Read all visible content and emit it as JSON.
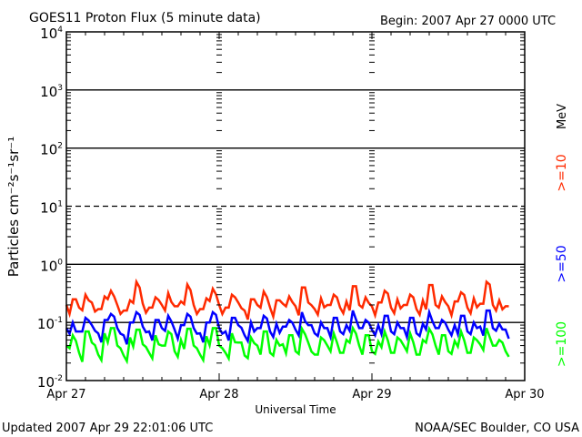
{
  "chart_data": {
    "type": "line",
    "title": "GOES11 Proton Flux (5 minute data)",
    "subtitle": "Begin: 2007 Apr 27 0000 UTC",
    "xlabel": "Universal Time",
    "ylabel": "Particles cm⁻²s⁻¹sr⁻¹",
    "x_ticks": [
      "Apr 27",
      "Apr 28",
      "Apr 29",
      "Apr 30"
    ],
    "xlim_days": [
      0,
      3
    ],
    "y_scale": "log",
    "ylim": [
      0.01,
      10000
    ],
    "y_ticks": [
      {
        "base": "10",
        "exp": "4"
      },
      {
        "base": "10",
        "exp": "3"
      },
      {
        "base": "10",
        "exp": "2"
      },
      {
        "base": "10",
        "exp": "1"
      },
      {
        "base": "10",
        "exp": "0"
      },
      {
        "base": "10",
        "exp": "-1"
      },
      {
        "base": "10",
        "exp": "-2"
      }
    ],
    "x_unit": "hours since 2007 Apr 27 0000 UTC",
    "unit_label": "MeV",
    "series": [
      {
        "name": ">=10",
        "color": "#ff2a00",
        "values": [
          0.2,
          0.25,
          0.18,
          0.3,
          0.22,
          0.17,
          0.28,
          0.35,
          0.2,
          0.16,
          0.24,
          0.5,
          0.21,
          0.18,
          0.27,
          0.2,
          0.32,
          0.19,
          0.23,
          0.45,
          0.2,
          0.17,
          0.26,
          0.38,
          0.2,
          0.18,
          0.3,
          0.22,
          0.16,
          0.25,
          0.2,
          0.34,
          0.18,
          0.24,
          0.21,
          0.28,
          0.19,
          0.4,
          0.22,
          0.17,
          0.26,
          0.2,
          0.3,
          0.18,
          0.23,
          0.42,
          0.2,
          0.27,
          0.19,
          0.22,
          0.35,
          0.18,
          0.25,
          0.2,
          0.3,
          0.17,
          0.24,
          0.44,
          0.2,
          0.28,
          0.19,
          0.23,
          0.33,
          0.18,
          0.26,
          0.21,
          0.5,
          0.2,
          0.24,
          0.19
        ]
      },
      {
        "name": ">=50",
        "color": "#0000ff",
        "values": [
          0.08,
          0.1,
          0.07,
          0.12,
          0.09,
          0.065,
          0.11,
          0.14,
          0.08,
          0.06,
          0.1,
          0.15,
          0.085,
          0.07,
          0.11,
          0.08,
          0.13,
          0.075,
          0.09,
          0.14,
          0.08,
          0.065,
          0.1,
          0.15,
          0.08,
          0.07,
          0.12,
          0.09,
          0.06,
          0.1,
          0.08,
          0.13,
          0.07,
          0.095,
          0.085,
          0.11,
          0.075,
          0.15,
          0.09,
          0.065,
          0.1,
          0.08,
          0.12,
          0.07,
          0.09,
          0.16,
          0.08,
          0.11,
          0.075,
          0.09,
          0.13,
          0.07,
          0.1,
          0.08,
          0.12,
          0.065,
          0.095,
          0.15,
          0.08,
          0.11,
          0.075,
          0.09,
          0.13,
          0.07,
          0.1,
          0.085,
          0.16,
          0.08,
          0.095,
          0.075
        ]
      },
      {
        "name": ">=100",
        "color": "#00ff00",
        "values": [
          0.04,
          0.06,
          0.03,
          0.07,
          0.045,
          0.028,
          0.065,
          0.08,
          0.04,
          0.027,
          0.055,
          0.075,
          0.042,
          0.03,
          0.06,
          0.04,
          0.07,
          0.032,
          0.05,
          0.078,
          0.04,
          0.028,
          0.058,
          0.08,
          0.04,
          0.03,
          0.065,
          0.045,
          0.027,
          0.055,
          0.04,
          0.07,
          0.03,
          0.05,
          0.042,
          0.06,
          0.032,
          0.078,
          0.045,
          0.028,
          0.055,
          0.04,
          0.065,
          0.03,
          0.05,
          0.08,
          0.04,
          0.06,
          0.032,
          0.047,
          0.07,
          0.03,
          0.055,
          0.04,
          0.065,
          0.028,
          0.05,
          0.078,
          0.04,
          0.06,
          0.032,
          0.048,
          0.07,
          0.03,
          0.055,
          0.042,
          0.08,
          0.04,
          0.05,
          0.032
        ]
      }
    ],
    "grid": "solid lines at decades, dashed at 10^1"
  },
  "footer": {
    "updated": "Updated 2007 Apr 29 22:01:06 UTC",
    "credit": "NOAA/SEC Boulder, CO USA"
  }
}
